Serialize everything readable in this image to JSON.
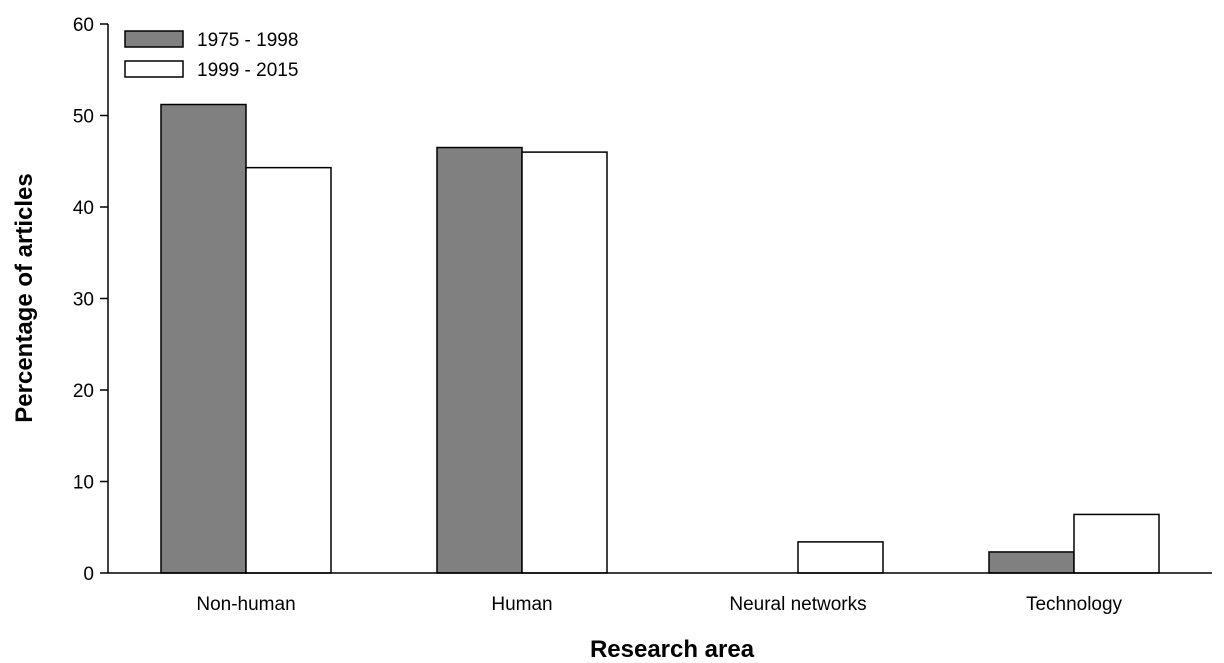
{
  "chart_data": {
    "type": "bar",
    "categories": [
      "Non-human",
      "Human",
      "Neural networks",
      "Technology"
    ],
    "series": [
      {
        "name": "1975 - 1998",
        "color": "#808080",
        "values": [
          51.2,
          46.5,
          0,
          2.3
        ]
      },
      {
        "name": "1999 - 2015",
        "color": "#ffffff",
        "values": [
          44.3,
          46.0,
          3.4,
          6.4
        ]
      }
    ],
    "xlabel": "Research area",
    "ylabel": "Percentage of articles",
    "ylim": [
      0,
      60
    ],
    "yticks": [
      0,
      10,
      20,
      30,
      40,
      50,
      60
    ],
    "grid": false,
    "legend_position": "top-left"
  }
}
